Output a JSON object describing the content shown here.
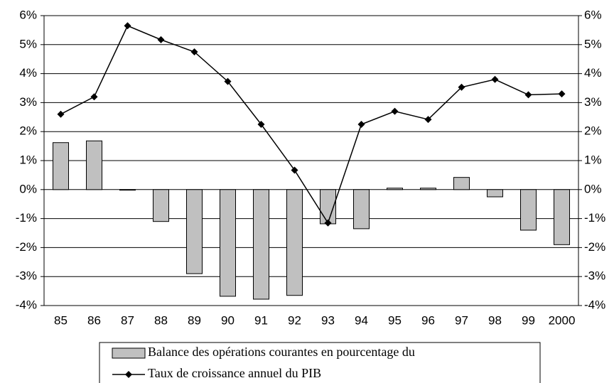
{
  "chart_data": {
    "type": "bar-line",
    "categories": [
      "85",
      "86",
      "87",
      "88",
      "89",
      "90",
      "91",
      "92",
      "93",
      "94",
      "95",
      "96",
      "97",
      "98",
      "99",
      "2000"
    ],
    "series": [
      {
        "name": "Balance des opérations courantes en pourcentage du",
        "type": "bar",
        "color": "#c0c0c0",
        "values": [
          1.62,
          1.68,
          -0.02,
          -1.1,
          -2.9,
          -3.68,
          -3.78,
          -3.65,
          -1.18,
          -1.35,
          0.05,
          0.05,
          0.42,
          -0.25,
          -1.4,
          -1.9
        ]
      },
      {
        "name": "Taux de croissance annuel du PIB",
        "type": "line",
        "color": "#000000",
        "values": [
          2.6,
          3.2,
          5.65,
          5.17,
          4.75,
          3.73,
          2.25,
          0.67,
          -1.15,
          2.25,
          2.7,
          2.42,
          3.53,
          3.8,
          3.27,
          3.3
        ]
      }
    ],
    "ylim": [
      -4,
      6
    ],
    "yticks": [
      {
        "value": -4,
        "label": "-4%"
      },
      {
        "value": -3,
        "label": "-3%"
      },
      {
        "value": -2,
        "label": "-2%"
      },
      {
        "value": -1,
        "label": "-1%"
      },
      {
        "value": 0,
        "label": "0%"
      },
      {
        "value": 1,
        "label": "1%"
      },
      {
        "value": 2,
        "label": "2%"
      },
      {
        "value": 3,
        "label": "3%"
      },
      {
        "value": 4,
        "label": "4%"
      },
      {
        "value": 5,
        "label": "5%"
      },
      {
        "value": 6,
        "label": "6%"
      }
    ],
    "y2lim": [
      -4,
      6
    ],
    "y2ticks": [
      {
        "value": -4,
        "label": "-4%"
      },
      {
        "value": -3,
        "label": "-3%"
      },
      {
        "value": -2,
        "label": "-2%"
      },
      {
        "value": -1,
        "label": "-1%"
      },
      {
        "value": 0,
        "label": "0%"
      },
      {
        "value": 1,
        "label": "1%"
      },
      {
        "value": 2,
        "label": "2%"
      },
      {
        "value": 3,
        "label": "3%"
      },
      {
        "value": 4,
        "label": "4%"
      },
      {
        "value": 5,
        "label": "5%"
      },
      {
        "value": 6,
        "label": "6%"
      }
    ],
    "grid": true
  }
}
